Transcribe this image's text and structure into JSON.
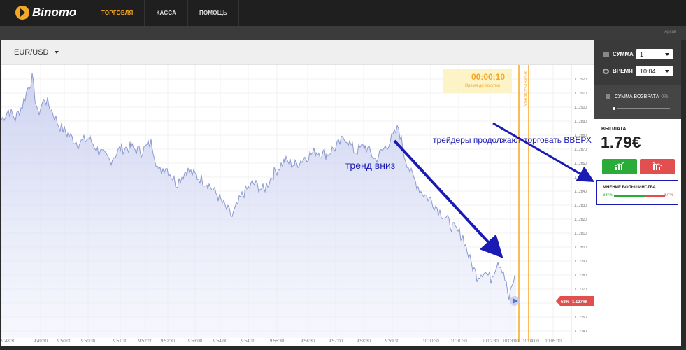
{
  "app": {
    "brand": "Binomo"
  },
  "nav": {
    "items": [
      "ТОРГОВЛЯ",
      "КАССА",
      "ПОМОЩЬ"
    ]
  },
  "subbar": {
    "link": "Архив"
  },
  "asset": {
    "pair": "EUR/USD"
  },
  "timer": {
    "value": "00:00:10",
    "label": "Время до покупки"
  },
  "result_line_label": "ВРЕМЯ РЕЗУЛЬТАТА",
  "annotations": {
    "trend": "тренд вниз",
    "traders": "трейдеры продолжают торговать ВВЕРХ"
  },
  "price_tag": {
    "percent": "58%",
    "price": "1.12768"
  },
  "trade": {
    "amount_label": "СУММА",
    "amount_value": "1",
    "time_label": "ВРЕМЯ",
    "time_value": "10:04",
    "refund_label": "СУММА ВОЗВРАТА",
    "refund_pct": "0%",
    "refund_level": 0
  },
  "payout": {
    "label": "ВЫПЛАТА",
    "value": "1.79€"
  },
  "majority": {
    "title": "МНЕНИЕ БОЛЬШИНСТВА",
    "up": "63 %",
    "down": "37 %",
    "up_share": 0.63
  },
  "colors": {
    "accent": "#f5a623",
    "up": "#2bab3a",
    "down": "#e14f4f",
    "arrow": "#1a1ab5",
    "line": "#8d99cf"
  },
  "chart_data": {
    "type": "area",
    "y_ticks": [
      "1.12920",
      "1.12910",
      "1.12900",
      "1.12890",
      "1.12880",
      "1.12870",
      "1.12860",
      "1.12850",
      "1.12840",
      "1.12830",
      "1.12820",
      "1.12810",
      "1.12800",
      "1.12790",
      "1.12780",
      "1.12770",
      "1.12760",
      "1.12750",
      "1.12740"
    ],
    "x_ticks": [
      "9:48:30",
      "9:49:30",
      "9:50:00",
      "9:50:30",
      "9:51:30",
      "9:52:00",
      "9:52:30",
      "9:53:00",
      "9:54:00",
      "9:54:30",
      "9:55:30",
      "9:56:30",
      "9:57:00",
      "9:58:30",
      "9:59:30",
      "10:00:30",
      "10:01:30",
      "10:02:30",
      "10:03:00",
      "10:04:00",
      "10:05:00"
    ],
    "ylim": [
      1.12735,
      1.12925
    ],
    "current_price": 1.12768,
    "key_points": [
      [
        0,
        1.12886
      ],
      [
        10,
        1.12893
      ],
      [
        20,
        1.12887
      ],
      [
        30,
        1.12897
      ],
      [
        38,
        1.1291
      ],
      [
        44,
        1.12917
      ],
      [
        52,
        1.1289
      ],
      [
        62,
        1.12902
      ],
      [
        72,
        1.12893
      ],
      [
        82,
        1.12882
      ],
      [
        95,
        1.12875
      ],
      [
        110,
        1.12868
      ],
      [
        125,
        1.12872
      ],
      [
        140,
        1.12862
      ],
      [
        155,
        1.12855
      ],
      [
        170,
        1.12864
      ],
      [
        185,
        1.12865
      ],
      [
        200,
        1.12862
      ],
      [
        215,
        1.12869
      ],
      [
        225,
        1.12846
      ],
      [
        235,
        1.12851
      ],
      [
        250,
        1.12838
      ],
      [
        265,
        1.12848
      ],
      [
        280,
        1.12843
      ],
      [
        295,
        1.12838
      ],
      [
        310,
        1.12828
      ],
      [
        320,
        1.1282
      ],
      [
        330,
        1.12813
      ],
      [
        345,
        1.1283
      ],
      [
        360,
        1.12838
      ],
      [
        375,
        1.12833
      ],
      [
        390,
        1.12846
      ],
      [
        405,
        1.12855
      ],
      [
        420,
        1.12852
      ],
      [
        435,
        1.12858
      ],
      [
        450,
        1.12862
      ],
      [
        465,
        1.1286
      ],
      [
        480,
        1.12866
      ],
      [
        492,
        1.12873
      ],
      [
        505,
        1.12862
      ],
      [
        520,
        1.12866
      ],
      [
        535,
        1.12856
      ],
      [
        550,
        1.12866
      ],
      [
        560,
        1.12873
      ],
      [
        568,
        1.1288
      ],
      [
        576,
        1.1286
      ],
      [
        586,
        1.12845
      ],
      [
        600,
        1.12832
      ],
      [
        615,
        1.12825
      ],
      [
        630,
        1.12815
      ],
      [
        645,
        1.12805
      ],
      [
        660,
        1.12798
      ],
      [
        670,
        1.1278
      ],
      [
        680,
        1.12768
      ],
      [
        690,
        1.12772
      ],
      [
        700,
        1.12766
      ],
      [
        710,
        1.1278
      ],
      [
        718,
        1.12772
      ],
      [
        726,
        1.1275
      ],
      [
        732,
        1.12764
      ],
      [
        736,
        1.12768
      ]
    ]
  }
}
